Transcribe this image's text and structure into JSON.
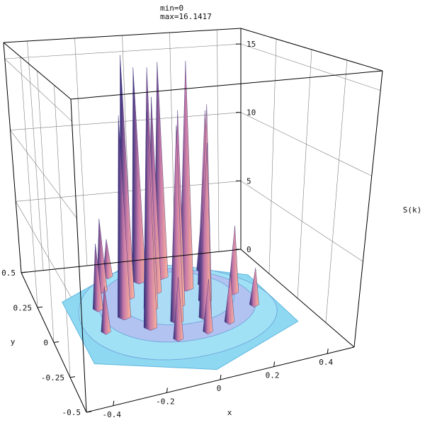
{
  "header": {
    "min_text": "min=0",
    "max_text": "max=16.1417"
  },
  "chart_data": {
    "type": "surface3d",
    "title": "",
    "min_label": "min=0",
    "max_label": "max=16.1417",
    "xlabel": "x",
    "ylabel": "y",
    "zlabel": "S(k)",
    "x_ticks": [
      "-0.4",
      "-0.2",
      "0",
      "0.2",
      "0.4"
    ],
    "x_tick_values": [
      -0.4,
      -0.2,
      0,
      0.2,
      0.4
    ],
    "y_ticks": [
      "0.5",
      "0.25",
      "0",
      "-0.25",
      "-0.5"
    ],
    "y_tick_values": [
      0.5,
      0.25,
      0,
      -0.25,
      -0.5
    ],
    "z_ticks": [
      "15",
      "10",
      "5",
      "0"
    ],
    "z_tick_values": [
      15,
      10,
      5,
      0
    ],
    "xlim": [
      -0.5,
      0.5
    ],
    "ylim": [
      -0.5,
      0.5
    ],
    "zlim": [
      0,
      16.1417
    ],
    "grid": true,
    "colors": {
      "base": "#8fd8f2",
      "peak": "#ffb59a",
      "shadow": "#2c2a7a",
      "box": "#000000",
      "grid": "#808080"
    },
    "peaks": [
      {
        "x": -0.05,
        "y": 0.28,
        "z": 14.8
      },
      {
        "x": 0.05,
        "y": 0.29,
        "z": 15.0
      },
      {
        "x": -0.14,
        "y": 0.17,
        "z": 16.1
      },
      {
        "x": -0.02,
        "y": 0.18,
        "z": 13.2
      },
      {
        "x": 0.11,
        "y": 0.17,
        "z": 15.4
      },
      {
        "x": 0.19,
        "y": 0.18,
        "z": 12.0
      },
      {
        "x": -0.2,
        "y": 0.03,
        "z": 12.9
      },
      {
        "x": -0.08,
        "y": 0.06,
        "z": 15.6
      },
      {
        "x": 0.03,
        "y": 0.05,
        "z": 12.8
      },
      {
        "x": 0.14,
        "y": 0.05,
        "z": 13.0
      },
      {
        "x": -0.13,
        "y": -0.08,
        "z": 13.5
      },
      {
        "x": -0.02,
        "y": -0.07,
        "z": 12.4
      },
      {
        "x": 0.09,
        "y": -0.08,
        "z": 11.2
      },
      {
        "x": -0.22,
        "y": 0.25,
        "z": 5.2
      },
      {
        "x": -0.28,
        "y": 0.12,
        "z": 4.6
      },
      {
        "x": 0.23,
        "y": 0.3,
        "z": 4.2
      },
      {
        "x": 0.27,
        "y": 0.08,
        "z": 4.8
      },
      {
        "x": -0.06,
        "y": -0.2,
        "z": 4.1
      },
      {
        "x": 0.06,
        "y": -0.19,
        "z": 3.6
      },
      {
        "x": -0.3,
        "y": -0.05,
        "z": 3.2
      },
      {
        "x": 0.16,
        "y": -0.15,
        "z": 3.4
      },
      {
        "x": -0.16,
        "y": 0.35,
        "z": 3.0
      },
      {
        "x": 0.3,
        "y": -0.05,
        "z": 2.8
      }
    ]
  }
}
